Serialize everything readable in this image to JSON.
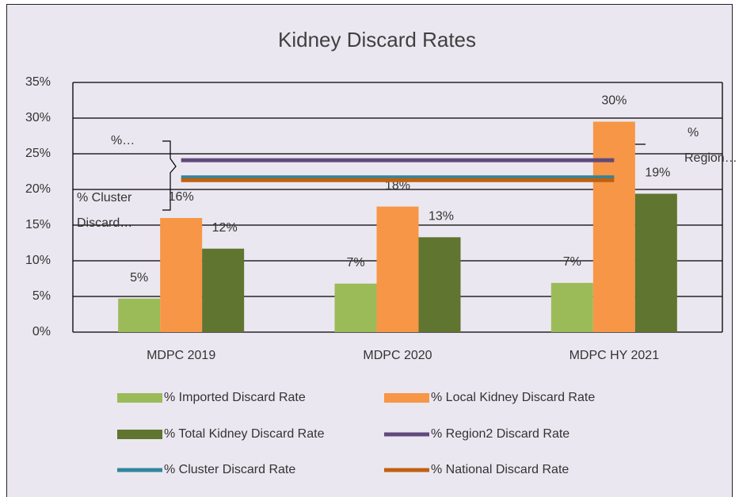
{
  "chart_data": {
    "type": "bar",
    "title": "Kidney Discard Rates",
    "categories": [
      "MDPC 2019",
      "MDPC 2020",
      "MDPC HY 2021"
    ],
    "ylim": [
      0,
      35
    ],
    "yticks": [
      {
        "value": 0,
        "label": "0%"
      },
      {
        "value": 5,
        "label": "5%"
      },
      {
        "value": 10,
        "label": "10%"
      },
      {
        "value": 15,
        "label": "15%"
      },
      {
        "value": 20,
        "label": "20%"
      },
      {
        "value": 25,
        "label": "25%"
      },
      {
        "value": 30,
        "label": "30%"
      },
      {
        "value": 35,
        "label": "35%"
      }
    ],
    "grid": true,
    "legend": "bottom",
    "series": [
      {
        "name": "% Imported Discard Rate",
        "type": "bar",
        "color": "#9bbb59",
        "values": [
          4.7,
          6.8,
          6.9
        ],
        "value_labels": [
          "5%",
          "7%",
          "7%"
        ]
      },
      {
        "name": "% Local Kidney Discard Rate",
        "type": "bar",
        "color": "#f79646",
        "values": [
          16,
          17.6,
          29.5
        ],
        "value_labels": [
          "16%",
          "18%",
          "30%"
        ]
      },
      {
        "name": "% Total Kidney Discard Rate",
        "type": "bar",
        "color": "#5f7530",
        "values": [
          11.7,
          13.3,
          19.4
        ],
        "value_labels": [
          "12%",
          "13%",
          "19%"
        ]
      },
      {
        "name": "% Region2 Discard Rate",
        "type": "line",
        "color": "#604a7b",
        "values": [
          24.1,
          24.1,
          24.1
        ]
      },
      {
        "name": "% Cluster Discard Rate",
        "type": "line",
        "color": "#31859c",
        "values": [
          21.7,
          21.7,
          21.7
        ]
      },
      {
        "name": "% National Discard Rate",
        "type": "line",
        "color": "#c0600f",
        "values": [
          21.3,
          21.3,
          21.3
        ]
      }
    ],
    "annotations": [
      {
        "lines": [
          "%…"
        ]
      },
      {
        "lines": [
          "% Cluster",
          "Discard…"
        ]
      },
      {
        "lines": [
          "%",
          "Region…"
        ]
      }
    ]
  }
}
